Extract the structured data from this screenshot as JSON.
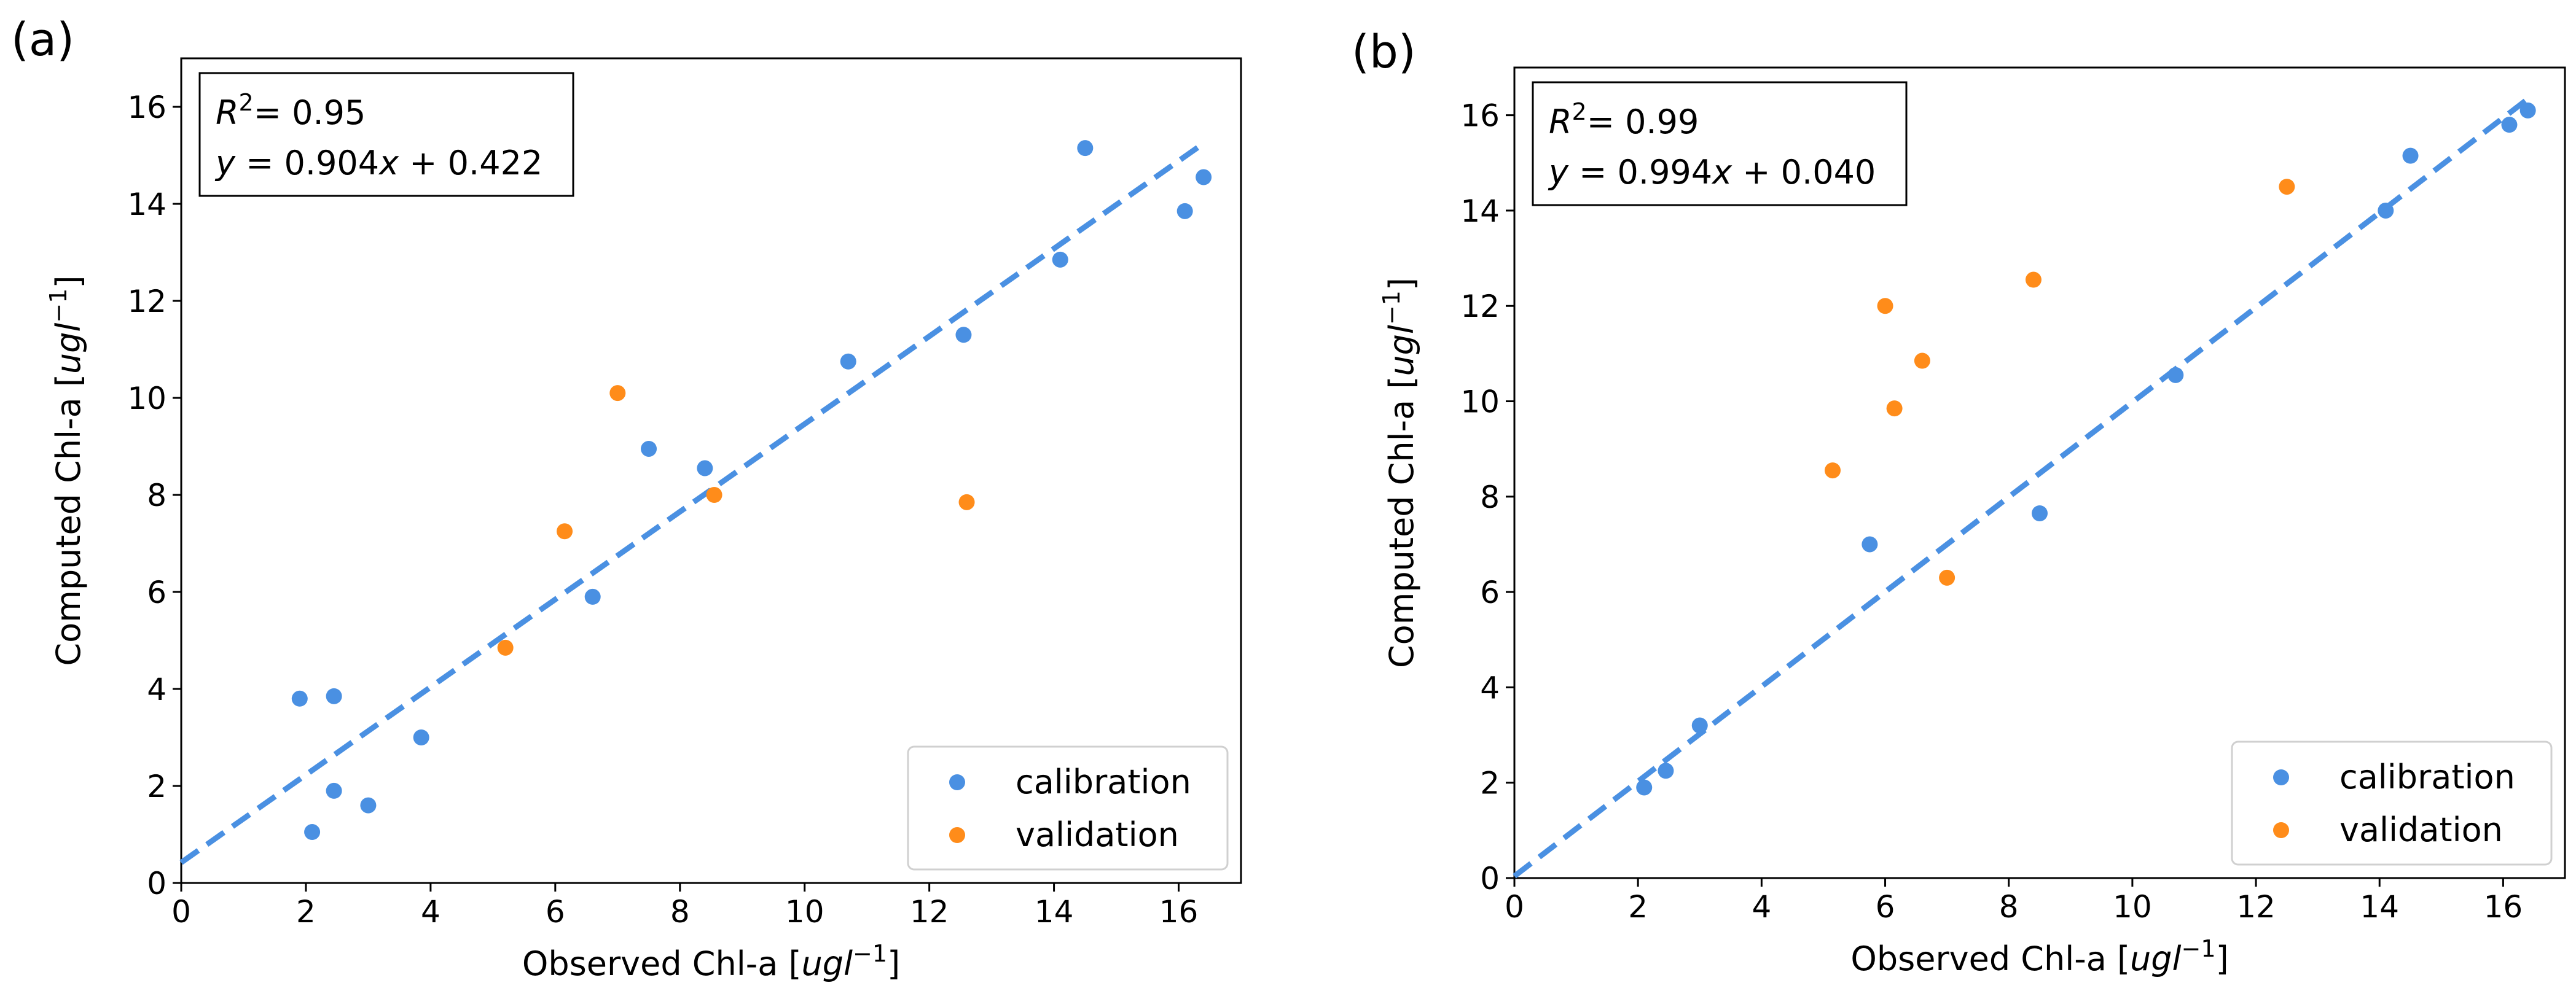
{
  "figure": {
    "colors": {
      "calibration": "#4a90e2",
      "validation": "#ff8c1a",
      "fit_line": "#4a90e2",
      "axes": "#000000"
    }
  },
  "chart_data": [
    {
      "panel_label": "(a)",
      "type": "scatter",
      "xlabel": "Observed Chl-a [",
      "ylabel": "Computed Chl-a [",
      "unit": "ugl",
      "unit_exp": "−1",
      "xlim": [
        0,
        17
      ],
      "ylim": [
        0,
        17
      ],
      "xticks": [
        0,
        2,
        4,
        6,
        8,
        10,
        12,
        14,
        16
      ],
      "yticks": [
        0,
        2,
        4,
        6,
        8,
        10,
        12,
        14,
        16
      ],
      "annotation": {
        "r2_label": "R",
        "r2_exp": "2",
        "r2_value": "= 0.95",
        "eq_y": "y",
        "eq_mid": " = 0.904",
        "eq_x": "x",
        "eq_end": " + 0.422"
      },
      "fit": {
        "slope": 0.904,
        "intercept": 0.422,
        "x_range": [
          0,
          16.4
        ]
      },
      "series": [
        {
          "name": "calibration",
          "points": [
            [
              1.9,
              3.8
            ],
            [
              2.1,
              1.05
            ],
            [
              2.45,
              3.85
            ],
            [
              2.45,
              1.9
            ],
            [
              3.0,
              1.6
            ],
            [
              3.85,
              3.0
            ],
            [
              6.6,
              5.9
            ],
            [
              7.5,
              8.95
            ],
            [
              8.4,
              8.55
            ],
            [
              10.7,
              10.75
            ],
            [
              12.55,
              11.3
            ],
            [
              14.1,
              12.85
            ],
            [
              14.5,
              15.15
            ],
            [
              16.1,
              13.85
            ],
            [
              16.4,
              14.55
            ]
          ]
        },
        {
          "name": "validation",
          "points": [
            [
              5.2,
              4.85
            ],
            [
              6.15,
              7.25
            ],
            [
              7.0,
              10.1
            ],
            [
              8.55,
              8.0
            ],
            [
              12.6,
              7.85
            ]
          ]
        }
      ],
      "legend": [
        "calibration",
        "validation"
      ],
      "legend_position": "bottom-right"
    },
    {
      "panel_label": "(b)",
      "type": "scatter",
      "xlabel": "Observed Chl-a [",
      "ylabel": "Computed Chl-a [",
      "unit": "ugl",
      "unit_exp": "−1",
      "xlim": [
        0,
        17
      ],
      "ylim": [
        0,
        17
      ],
      "xticks": [
        0,
        2,
        4,
        6,
        8,
        10,
        12,
        14,
        16
      ],
      "yticks": [
        0,
        2,
        4,
        6,
        8,
        10,
        12,
        14,
        16
      ],
      "annotation": {
        "r2_label": "R",
        "r2_exp": "2",
        "r2_value": "= 0.99",
        "eq_y": "y",
        "eq_mid": " = 0.994",
        "eq_x": "x",
        "eq_end": " + 0.040"
      },
      "fit": {
        "slope": 0.994,
        "intercept": 0.04,
        "x_range": [
          0,
          16.4
        ]
      },
      "series": [
        {
          "name": "calibration",
          "points": [
            [
              2.1,
              1.9
            ],
            [
              2.45,
              2.25
            ],
            [
              3.0,
              3.2
            ],
            [
              5.75,
              7.0
            ],
            [
              8.5,
              7.65
            ],
            [
              10.7,
              10.55
            ],
            [
              14.1,
              14.0
            ],
            [
              14.5,
              15.15
            ],
            [
              16.1,
              15.8
            ],
            [
              16.4,
              16.1
            ]
          ]
        },
        {
          "name": "validation",
          "points": [
            [
              5.15,
              8.55
            ],
            [
              6.0,
              12.0
            ],
            [
              6.15,
              9.85
            ],
            [
              6.6,
              10.85
            ],
            [
              7.0,
              6.3
            ],
            [
              8.4,
              12.55
            ],
            [
              12.5,
              14.5
            ]
          ]
        }
      ],
      "legend": [
        "calibration",
        "validation"
      ],
      "legend_position": "bottom-right"
    }
  ]
}
